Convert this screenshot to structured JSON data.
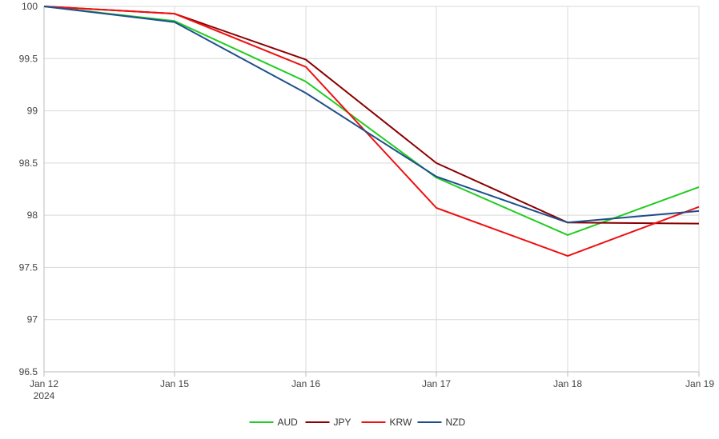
{
  "chart_data": {
    "type": "line",
    "title": "",
    "xlabel": "",
    "ylabel": "",
    "categories": [
      "Jan 12",
      "Jan 15",
      "Jan 16",
      "Jan 17",
      "Jan 18",
      "Jan 19"
    ],
    "x_sublabels": [
      "2024",
      "",
      "",
      "",
      "",
      ""
    ],
    "ylim": [
      96.5,
      100
    ],
    "y_ticks": [
      96.5,
      97,
      97.5,
      98,
      98.5,
      99,
      99.5,
      100
    ],
    "y_tick_labels": [
      "96.5",
      "97",
      "97.5",
      "98",
      "98.5",
      "99",
      "99.5",
      "100"
    ],
    "grid": true,
    "legend_position": "bottom-center",
    "series": [
      {
        "name": "AUD",
        "color": "#22cc22",
        "values": [
          100,
          99.86,
          99.28,
          98.36,
          97.81,
          98.27
        ]
      },
      {
        "name": "JPY",
        "color": "#8b0000",
        "values": [
          100,
          99.93,
          99.49,
          98.5,
          97.93,
          97.92
        ]
      },
      {
        "name": "KRW",
        "color": "#ee1111",
        "values": [
          100,
          99.93,
          99.42,
          98.07,
          97.61,
          98.08
        ]
      },
      {
        "name": "NZD",
        "color": "#1f4e8c",
        "values": [
          100,
          99.85,
          99.17,
          98.37,
          97.93,
          98.04
        ]
      }
    ]
  }
}
